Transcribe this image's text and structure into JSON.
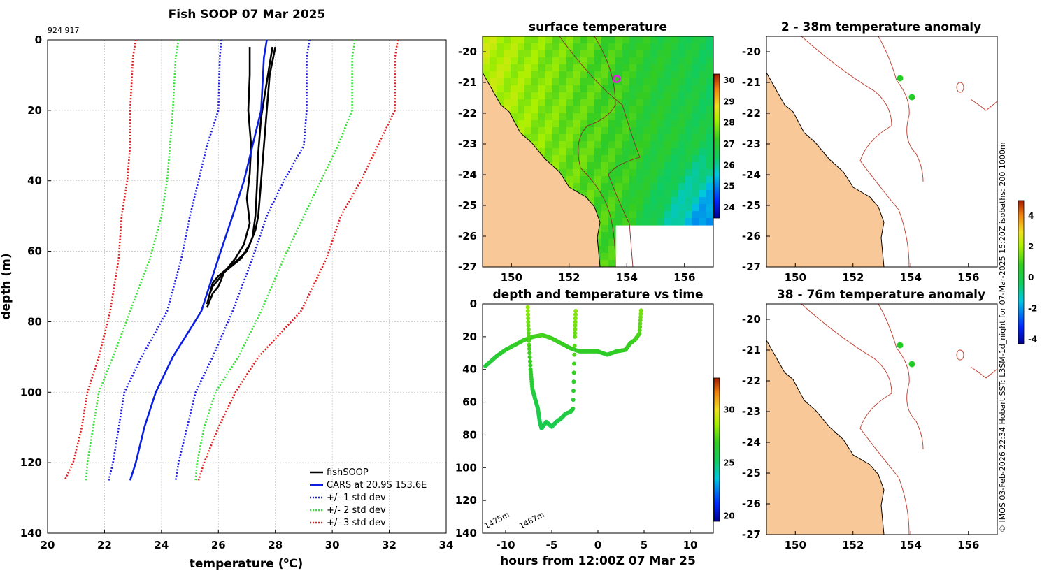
{
  "chart_data": [
    {
      "id": "profile",
      "type": "line",
      "title": "Fish SOOP 07 Mar 2025",
      "subtitle": "924 917",
      "xlabel": "temperature (°C)",
      "xlabel_main": "temperature (",
      "xlabel_unit_sup": "o",
      "xlabel_unit": "C)",
      "ylabel": "depth (m)",
      "xlim": [
        20,
        34
      ],
      "ylim": [
        0,
        140
      ],
      "y_reversed": true,
      "grid": true,
      "xticks": [
        20,
        22,
        24,
        26,
        28,
        30,
        32,
        34
      ],
      "yticks": [
        0,
        20,
        40,
        60,
        80,
        100,
        120,
        140
      ],
      "legend_position": "bottom-right",
      "legend": [
        "fishSOOP",
        "CARS at 20.9S 153.6E",
        "+/- 1 std dev",
        "+/- 2 std dev",
        "+/- 3 std dev"
      ],
      "series": [
        {
          "name": "fishSOOP",
          "color": "#000000",
          "style": "solid",
          "x": [
            27.1,
            27.1,
            27.05,
            27.15,
            27.1,
            27.0,
            27.1,
            26.9,
            26.6,
            26.4,
            26.2,
            26.1,
            26.0,
            25.8,
            25.7,
            25.6
          ],
          "y": [
            2,
            10,
            20,
            30,
            38,
            45,
            52,
            58,
            62,
            64,
            66,
            68,
            70,
            72,
            74,
            76
          ]
        },
        {
          "name": "fishSOOP",
          "color": "#000000",
          "style": "solid",
          "x": [
            28.0,
            27.8,
            27.7,
            27.6,
            27.5,
            27.4,
            27.3,
            27.1,
            26.8,
            26.5,
            26.2,
            26.0,
            25.8,
            25.7
          ],
          "y": [
            2,
            10,
            20,
            30,
            40,
            50,
            54,
            58,
            62,
            64,
            66,
            68,
            70,
            72
          ]
        },
        {
          "name": "fishSOOP",
          "color": "#000000",
          "style": "solid",
          "x": [
            27.9,
            27.7,
            27.5,
            27.4,
            27.35,
            27.3,
            27.2,
            27.0,
            26.6,
            26.3,
            26.0,
            25.8,
            25.7,
            25.6
          ],
          "y": [
            2,
            12,
            22,
            32,
            42,
            50,
            56,
            60,
            63,
            65,
            67,
            69,
            72,
            75
          ]
        },
        {
          "name": "CARS at 20.9S 153.6E",
          "color": "#0a1fe0",
          "style": "solid",
          "x": [
            27.7,
            27.6,
            27.5,
            27.2,
            26.9,
            26.5,
            26.0,
            25.4,
            24.4,
            23.8,
            23.4,
            23.1,
            22.9
          ],
          "y": [
            0,
            5,
            20,
            30,
            40,
            50,
            62,
            77,
            90,
            100,
            110,
            120,
            125
          ]
        },
        {
          "name": "+1 std dev",
          "color": "#1c1ce0",
          "style": "dotted",
          "x": [
            29.2,
            29.1,
            29.1,
            29.0,
            28.3,
            27.7,
            27.2,
            26.5,
            25.8,
            25.2,
            24.9,
            24.6,
            24.5
          ],
          "y": [
            0,
            5,
            20,
            30,
            40,
            50,
            62,
            77,
            90,
            100,
            110,
            120,
            125
          ]
        },
        {
          "name": "-1 std dev",
          "color": "#1c1ce0",
          "style": "dotted",
          "x": [
            26.1,
            26.05,
            26.0,
            25.6,
            25.3,
            25.0,
            24.7,
            24.2,
            23.3,
            22.7,
            22.5,
            22.3,
            22.15
          ],
          "y": [
            0,
            5,
            20,
            30,
            40,
            50,
            62,
            77,
            90,
            100,
            110,
            120,
            125
          ]
        },
        {
          "name": "+2 std dev",
          "color": "#33e033",
          "style": "dotted",
          "x": [
            30.8,
            30.7,
            30.7,
            30.2,
            29.6,
            29.0,
            28.3,
            27.5,
            26.7,
            25.9,
            25.5,
            25.25,
            25.2
          ],
          "y": [
            0,
            5,
            20,
            30,
            40,
            50,
            62,
            77,
            90,
            100,
            110,
            120,
            125
          ]
        },
        {
          "name": "-2 std dev",
          "color": "#33e033",
          "style": "dotted",
          "x": [
            24.6,
            24.5,
            24.4,
            24.3,
            24.2,
            24.0,
            23.6,
            22.9,
            22.3,
            21.8,
            21.6,
            21.4,
            21.35
          ],
          "y": [
            0,
            5,
            20,
            30,
            40,
            50,
            62,
            77,
            90,
            100,
            110,
            120,
            125
          ]
        },
        {
          "name": "+3 std dev",
          "color": "#e01c1c",
          "style": "dotted",
          "x": [
            32.3,
            32.2,
            32.2,
            31.6,
            31.0,
            30.3,
            29.8,
            28.9,
            27.4,
            26.6,
            26.0,
            25.5,
            25.3
          ],
          "y": [
            0,
            5,
            20,
            30,
            40,
            50,
            62,
            77,
            90,
            100,
            110,
            120,
            125
          ]
        },
        {
          "name": "-3 std dev",
          "color": "#e01c1c",
          "style": "dotted",
          "x": [
            23.1,
            23.0,
            22.9,
            22.9,
            22.8,
            22.6,
            22.5,
            22.2,
            21.8,
            21.4,
            21.2,
            20.9,
            20.6
          ],
          "y": [
            0,
            5,
            20,
            30,
            40,
            50,
            62,
            77,
            90,
            100,
            110,
            120,
            125
          ]
        }
      ]
    },
    {
      "id": "sst_map",
      "type": "heatmap",
      "title": "surface temperature",
      "xlim": [
        149,
        157
      ],
      "ylim": [
        -27,
        -19.5
      ],
      "xticks": [
        150,
        152,
        154,
        156
      ],
      "yticks": [
        -20,
        -21,
        -22,
        -23,
        -24,
        -25,
        -26,
        -27
      ],
      "colorbar_ticks": [
        24,
        25,
        26,
        27,
        28,
        29,
        30
      ],
      "colorbar_range": [
        23.5,
        30.3
      ],
      "marker": {
        "lon": 153.6,
        "lat": -21.0,
        "color": "#e020e0"
      }
    },
    {
      "id": "depth_time",
      "type": "scatter",
      "title": "depth and temperature vs time",
      "xlabel": "hours from 12:00Z 07 Mar 25",
      "xlim": [
        -12.5,
        12.5
      ],
      "ylim": [
        0,
        140
      ],
      "y_reversed": true,
      "xticks": [
        -10,
        -5,
        0,
        5,
        10
      ],
      "yticks": [
        0,
        20,
        40,
        60,
        80,
        100,
        120,
        140
      ],
      "colorbar_ticks": [
        20,
        25,
        30
      ],
      "colorbar_range": [
        19.5,
        33
      ],
      "annotations": [
        "1475m",
        "1487m"
      ],
      "tracks": [
        {
          "x": [
            -12.2,
            -11,
            -10,
            -9,
            -8,
            -7,
            -6,
            -5,
            -4,
            -3,
            -2,
            -1,
            0,
            1,
            2,
            3,
            3.5,
            4,
            4.5,
            4.7
          ],
          "y": [
            38,
            32,
            28,
            25,
            22,
            20,
            19,
            21,
            24,
            27,
            29,
            29,
            29,
            31,
            29,
            28,
            24,
            22,
            18,
            2
          ],
          "temps": [
            26.2,
            26.4,
            26.6,
            26.8,
            27.0,
            27.1,
            27.2,
            27.1,
            27.0,
            26.9,
            26.8,
            26.8,
            26.8,
            26.7,
            26.8,
            26.9,
            27.0,
            27.1,
            27.3,
            28.0
          ]
        },
        {
          "x": [
            -7.6,
            -7.5,
            -7.3,
            -7.1,
            -6.8,
            -6.5,
            -6.3,
            -6.1,
            -5.6,
            -5.0,
            -4.5,
            -4.0,
            -3.5,
            -3.0,
            -2.7,
            -2.5,
            -2.4
          ],
          "y": [
            2,
            20,
            40,
            52,
            58,
            64,
            72,
            76,
            72,
            75,
            72,
            70,
            67,
            66,
            64,
            20,
            2
          ],
          "temps": [
            28.3,
            27.4,
            26.8,
            26.3,
            26.0,
            25.9,
            25.7,
            25.6,
            25.7,
            25.6,
            25.7,
            25.8,
            25.9,
            26.0,
            26.3,
            27.6,
            28.3
          ]
        }
      ]
    },
    {
      "id": "anom_2_38",
      "type": "heatmap",
      "title": "2 - 38m temperature anomaly",
      "xlim": [
        149,
        157
      ],
      "ylim": [
        -27,
        -19.5
      ],
      "xticks": [
        150,
        152,
        154,
        156
      ],
      "yticks": [
        -20,
        -21,
        -22,
        -23,
        -24,
        -25,
        -26,
        -27
      ],
      "points": [
        {
          "lon": 153.6,
          "lat": -21.0
        },
        {
          "lon": 154.05,
          "lat": -21.55
        }
      ]
    },
    {
      "id": "anom_38_76",
      "type": "heatmap",
      "title": "38 - 76m temperature anomaly",
      "xlim": [
        149,
        157
      ],
      "ylim": [
        -27,
        -19.5
      ],
      "xticks": [
        150,
        152,
        154,
        156
      ],
      "yticks": [
        -20,
        -21,
        -22,
        -23,
        -24,
        -25,
        -26,
        -27
      ],
      "points": [
        {
          "lon": 153.6,
          "lat": -20.9
        },
        {
          "lon": 154.05,
          "lat": -21.6
        }
      ]
    },
    {
      "id": "anom_colorbar",
      "type": "heatmap",
      "colorbar_ticks": [
        -4,
        -2,
        0,
        2,
        4
      ],
      "colorbar_range": [
        -4.3,
        5.0
      ]
    }
  ],
  "credit": "© IMOS 03-Feb-2026 22:34 Hobart SST: L3SM-1d_night for 07-Mar-2025 15:20Z isobaths: 200  1000m",
  "colors": {
    "land": "#f8c898",
    "coast": "#000000",
    "isobath": "#c0392b",
    "station": "#22cc22"
  }
}
